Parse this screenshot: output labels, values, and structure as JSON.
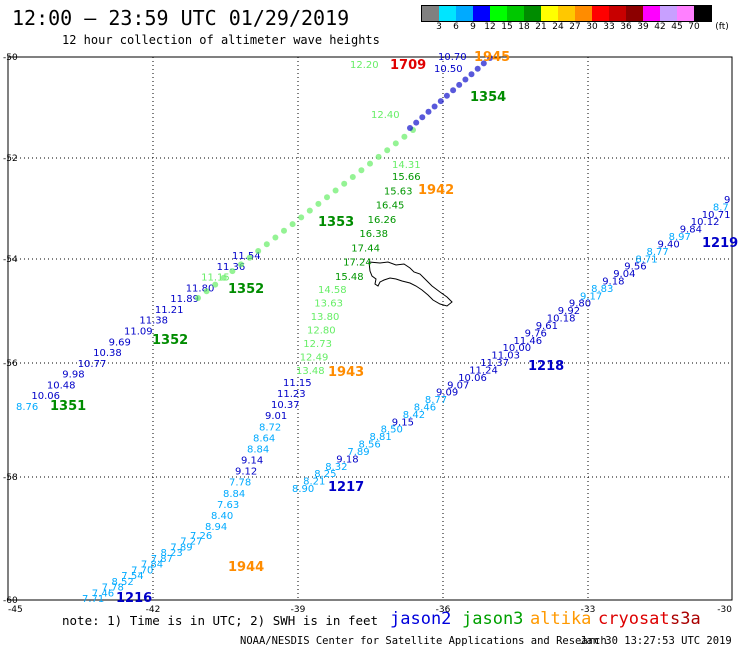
{
  "header": {
    "title": "12:00 – 23:59 UTC 01/29/2019",
    "subtitle": "12 hour collection of altimeter wave heights"
  },
  "legend": {
    "unit": "(ft)",
    "colors": [
      "#808080",
      "#00e5ff",
      "#00aaff",
      "#0000ff",
      "#00ff00",
      "#00c800",
      "#008c00",
      "#ffff00",
      "#ffc800",
      "#ff8c00",
      "#ff0000",
      "#c80000",
      "#8c0000",
      "#ff00ff",
      "#c8a0ff",
      "#ff80ff",
      "#000000"
    ],
    "labels": [
      "3",
      "6",
      "9",
      "12",
      "15",
      "18",
      "21",
      "24",
      "27",
      "30",
      "33",
      "36",
      "39",
      "42",
      "45",
      "70"
    ]
  },
  "map": {
    "lon_labels": [
      "-45",
      "-42",
      "-39",
      "-36",
      "-33",
      "-30"
    ],
    "lat_labels": [
      "-50",
      "-52",
      "-54",
      "-56",
      "-58",
      "-60"
    ],
    "coastline": "South Georgia Island"
  },
  "tracks": [
    {
      "name": "west-track",
      "labels": [
        {
          "t": "8.76",
          "c": "#00aaff"
        },
        {
          "t": "10.06",
          "c": "#0000c8"
        },
        {
          "t": "10.48",
          "c": "#0000c8"
        },
        {
          "t": "9.98",
          "c": "#0000c8"
        },
        {
          "t": "10.77",
          "c": "#0000c8"
        },
        {
          "t": "10.38",
          "c": "#0000c8"
        },
        {
          "t": "9.69",
          "c": "#0000c8"
        },
        {
          "t": "11.09",
          "c": "#0000c8"
        },
        {
          "t": "11.38",
          "c": "#0000c8"
        },
        {
          "t": "11.21",
          "c": "#0000c8"
        },
        {
          "t": "11.89",
          "c": "#0000c8"
        },
        {
          "t": "11.80",
          "c": "#0000c8"
        },
        {
          "t": "11.15",
          "c": "#66ee66"
        },
        {
          "t": "11.36",
          "c": "#0000c8"
        },
        {
          "t": "11.54",
          "c": "#0000c8"
        }
      ]
    },
    {
      "name": "middle-track",
      "labels": [
        {
          "t": "7.71",
          "c": "#00aaff"
        },
        {
          "t": "7.46",
          "c": "#00aaff"
        },
        {
          "t": "7.78",
          "c": "#00aaff"
        },
        {
          "t": "8.52",
          "c": "#00aaff"
        },
        {
          "t": "7.54",
          "c": "#00aaff"
        },
        {
          "t": "7.70",
          "c": "#00aaff"
        },
        {
          "t": "7.84",
          "c": "#00aaff"
        },
        {
          "t": "7.87",
          "c": "#00aaff"
        },
        {
          "t": "8.23",
          "c": "#00aaff"
        },
        {
          "t": "7.89",
          "c": "#00aaff"
        },
        {
          "t": "7.27",
          "c": "#00aaff"
        },
        {
          "t": "7.26",
          "c": "#00aaff"
        },
        {
          "t": "8.94",
          "c": "#00aaff"
        },
        {
          "t": "8.40",
          "c": "#00aaff"
        },
        {
          "t": "7.63",
          "c": "#00aaff"
        },
        {
          "t": "8.84",
          "c": "#00aaff"
        },
        {
          "t": "7.78",
          "c": "#00aaff"
        },
        {
          "t": "9.12",
          "c": "#0000c8"
        },
        {
          "t": "9.14",
          "c": "#0000c8"
        },
        {
          "t": "8.84",
          "c": "#00aaff"
        },
        {
          "t": "8.64",
          "c": "#00aaff"
        },
        {
          "t": "8.72",
          "c": "#00aaff"
        },
        {
          "t": "9.01",
          "c": "#0000c8"
        },
        {
          "t": "10.37",
          "c": "#0000c8"
        },
        {
          "t": "11.23",
          "c": "#0000c8"
        },
        {
          "t": "11.15",
          "c": "#0000c8"
        },
        {
          "t": "13.48",
          "c": "#66ee66"
        },
        {
          "t": "12.49",
          "c": "#66ee66"
        },
        {
          "t": "12.73",
          "c": "#66ee66"
        },
        {
          "t": "12.80",
          "c": "#66ee66"
        },
        {
          "t": "13.80",
          "c": "#66ee66"
        },
        {
          "t": "13.63",
          "c": "#66ee66"
        },
        {
          "t": "14.58",
          "c": "#66ee66"
        },
        {
          "t": "15.48",
          "c": "#009600"
        },
        {
          "t": "17.24",
          "c": "#009600"
        },
        {
          "t": "17.44",
          "c": "#009600"
        },
        {
          "t": "16.38",
          "c": "#009600"
        },
        {
          "t": "16.26",
          "c": "#009600"
        },
        {
          "t": "16.45",
          "c": "#009600"
        },
        {
          "t": "15.63",
          "c": "#009600"
        },
        {
          "t": "15.66",
          "c": "#009600"
        },
        {
          "t": "14.31",
          "c": "#66ee66"
        },
        {
          "t": "12.40",
          "c": "#66ee66"
        },
        {
          "t": "12.20",
          "c": "#66ee66"
        },
        {
          "t": "10.50",
          "c": "#0000c8"
        },
        {
          "t": "10.70",
          "c": "#0000c8"
        }
      ]
    },
    {
      "name": "east-track",
      "labels": [
        {
          "t": "8.90",
          "c": "#00aaff"
        },
        {
          "t": "8.21",
          "c": "#00aaff"
        },
        {
          "t": "8.25",
          "c": "#00aaff"
        },
        {
          "t": "8.32",
          "c": "#00aaff"
        },
        {
          "t": "9.18",
          "c": "#0000c8"
        },
        {
          "t": "7.89",
          "c": "#00aaff"
        },
        {
          "t": "8.56",
          "c": "#00aaff"
        },
        {
          "t": "8.81",
          "c": "#00aaff"
        },
        {
          "t": "8.50",
          "c": "#00aaff"
        },
        {
          "t": "9.15",
          "c": "#0000c8"
        },
        {
          "t": "8.42",
          "c": "#00aaff"
        },
        {
          "t": "8.46",
          "c": "#00aaff"
        },
        {
          "t": "8.77",
          "c": "#00aaff"
        },
        {
          "t": "9.09",
          "c": "#0000c8"
        },
        {
          "t": "9.07",
          "c": "#0000c8"
        },
        {
          "t": "10.06",
          "c": "#0000c8"
        },
        {
          "t": "11.24",
          "c": "#0000c8"
        },
        {
          "t": "11.37",
          "c": "#0000c8"
        },
        {
          "t": "11.03",
          "c": "#0000c8"
        },
        {
          "t": "10.00",
          "c": "#0000c8"
        },
        {
          "t": "11.46",
          "c": "#0000c8"
        },
        {
          "t": "9.76",
          "c": "#0000c8"
        },
        {
          "t": "9.61",
          "c": "#0000c8"
        },
        {
          "t": "10.18",
          "c": "#0000c8"
        },
        {
          "t": "9.92",
          "c": "#0000c8"
        },
        {
          "t": "9.80",
          "c": "#0000c8"
        },
        {
          "t": "9.17",
          "c": "#00aaff"
        },
        {
          "t": "8.83",
          "c": "#00aaff"
        },
        {
          "t": "9.18",
          "c": "#0000c8"
        },
        {
          "t": "9.04",
          "c": "#0000c8"
        },
        {
          "t": "9.56",
          "c": "#0000c8"
        },
        {
          "t": "8.71",
          "c": "#00aaff"
        },
        {
          "t": "8.77",
          "c": "#00aaff"
        },
        {
          "t": "9.40",
          "c": "#0000c8"
        },
        {
          "t": "8.97",
          "c": "#00aaff"
        },
        {
          "t": "9.84",
          "c": "#0000c8"
        },
        {
          "t": "10.12",
          "c": "#0000c8"
        },
        {
          "t": "10.71",
          "c": "#0000c8"
        },
        {
          "t": "8.7",
          "c": "#00aaff"
        },
        {
          "t": "9",
          "c": "#0000c8"
        }
      ]
    }
  ],
  "time_labels": [
    {
      "t": "1351",
      "c": "#008c00"
    },
    {
      "t": "1352",
      "c": "#008c00"
    },
    {
      "t": "1352",
      "c": "#008c00"
    },
    {
      "t": "1353",
      "c": "#008c00"
    },
    {
      "t": "1354",
      "c": "#008c00"
    },
    {
      "t": "1709",
      "c": "#e00000"
    },
    {
      "t": "1942",
      "c": "#ff8c00"
    },
    {
      "t": "1943",
      "c": "#ff8c00"
    },
    {
      "t": "1944",
      "c": "#ff8c00"
    },
    {
      "t": "1945",
      "c": "#ff8c00"
    },
    {
      "t": "1216",
      "c": "#0000c8"
    },
    {
      "t": "1217",
      "c": "#0000c8"
    },
    {
      "t": "1218",
      "c": "#0000c8"
    },
    {
      "t": "1219",
      "c": "#0000c8"
    }
  ],
  "footer": {
    "note": "note: 1) Time is in UTC; 2) SWH is in feet",
    "satellites": [
      {
        "name": "jason2",
        "color": "#0000dc"
      },
      {
        "name": "jason3",
        "color": "#00a000"
      },
      {
        "name": "altika",
        "color": "#ff9900"
      },
      {
        "name": "cryosat",
        "color": "#dd0000"
      },
      {
        "name": "s3a",
        "color": "#aa0000"
      }
    ],
    "credit": "NOAA/NESDIS Center for Satellite Applications and Research",
    "timestamp": "Jan 30 13:27:53 UTC 2019"
  }
}
